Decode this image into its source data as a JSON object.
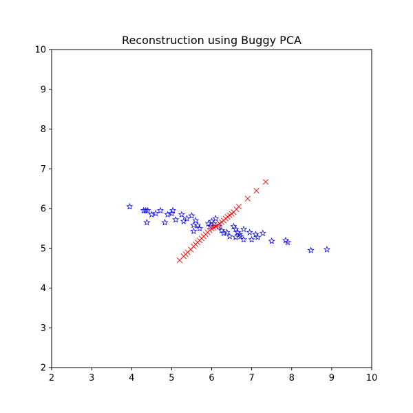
{
  "chart_data": {
    "type": "scatter",
    "title": "Reconstruction using Buggy PCA",
    "xlabel": "",
    "ylabel": "",
    "xlim": [
      2,
      10
    ],
    "ylim": [
      2,
      10
    ],
    "xticks": [
      "2",
      "3",
      "4",
      "5",
      "6",
      "7",
      "8",
      "9",
      "10"
    ],
    "yticks": [
      "2",
      "3",
      "4",
      "5",
      "6",
      "7",
      "8",
      "9",
      "10"
    ],
    "grid": false,
    "legend": "none",
    "series": [
      {
        "marker": "star",
        "color": "#0000ff",
        "filled": false,
        "points": [
          [
            3.95,
            6.05
          ],
          [
            4.3,
            5.95
          ],
          [
            4.35,
            5.95
          ],
          [
            4.4,
            5.95
          ],
          [
            4.38,
            5.65
          ],
          [
            4.5,
            5.85
          ],
          [
            4.6,
            5.88
          ],
          [
            4.72,
            5.95
          ],
          [
            4.83,
            5.65
          ],
          [
            4.9,
            5.85
          ],
          [
            5.0,
            5.88
          ],
          [
            5.03,
            5.95
          ],
          [
            5.1,
            5.72
          ],
          [
            5.25,
            5.85
          ],
          [
            5.3,
            5.68
          ],
          [
            5.38,
            5.75
          ],
          [
            5.5,
            5.82
          ],
          [
            5.55,
            5.58
          ],
          [
            5.55,
            5.43
          ],
          [
            5.6,
            5.7
          ],
          [
            5.65,
            5.58
          ],
          [
            5.7,
            5.5
          ],
          [
            5.92,
            5.62
          ],
          [
            5.97,
            5.55
          ],
          [
            6.0,
            5.68
          ],
          [
            6.05,
            5.62
          ],
          [
            6.1,
            5.75
          ],
          [
            6.18,
            5.55
          ],
          [
            6.25,
            5.45
          ],
          [
            6.3,
            5.38
          ],
          [
            6.38,
            5.4
          ],
          [
            6.45,
            5.3
          ],
          [
            6.55,
            5.55
          ],
          [
            6.6,
            5.48
          ],
          [
            6.65,
            5.4
          ],
          [
            6.7,
            5.35
          ],
          [
            6.72,
            5.3
          ],
          [
            6.6,
            5.28
          ],
          [
            6.8,
            5.48
          ],
          [
            6.8,
            5.22
          ],
          [
            6.95,
            5.4
          ],
          [
            7.0,
            5.22
          ],
          [
            7.1,
            5.35
          ],
          [
            7.15,
            5.28
          ],
          [
            7.28,
            5.38
          ],
          [
            7.5,
            5.18
          ],
          [
            7.85,
            5.2
          ],
          [
            7.9,
            5.15
          ],
          [
            8.48,
            4.95
          ],
          [
            8.88,
            4.97
          ]
        ]
      },
      {
        "marker": "x",
        "color": "#ff0000",
        "filled": false,
        "points": [
          [
            5.2,
            4.7
          ],
          [
            5.3,
            4.8
          ],
          [
            5.35,
            4.85
          ],
          [
            5.4,
            4.9
          ],
          [
            5.48,
            4.97
          ],
          [
            5.55,
            5.05
          ],
          [
            5.6,
            5.1
          ],
          [
            5.65,
            5.15
          ],
          [
            5.7,
            5.2
          ],
          [
            5.75,
            5.25
          ],
          [
            5.8,
            5.3
          ],
          [
            5.85,
            5.35
          ],
          [
            5.9,
            5.4
          ],
          [
            5.95,
            5.45
          ],
          [
            6.0,
            5.5
          ],
          [
            6.05,
            5.52
          ],
          [
            6.1,
            5.55
          ],
          [
            6.15,
            5.58
          ],
          [
            6.2,
            5.62
          ],
          [
            6.25,
            5.66
          ],
          [
            6.3,
            5.7
          ],
          [
            6.35,
            5.75
          ],
          [
            6.4,
            5.79
          ],
          [
            6.45,
            5.83
          ],
          [
            6.5,
            5.87
          ],
          [
            6.55,
            5.91
          ],
          [
            6.62,
            5.98
          ],
          [
            6.68,
            6.05
          ],
          [
            6.9,
            6.25
          ],
          [
            7.12,
            6.45
          ],
          [
            7.35,
            6.67
          ]
        ]
      }
    ]
  }
}
